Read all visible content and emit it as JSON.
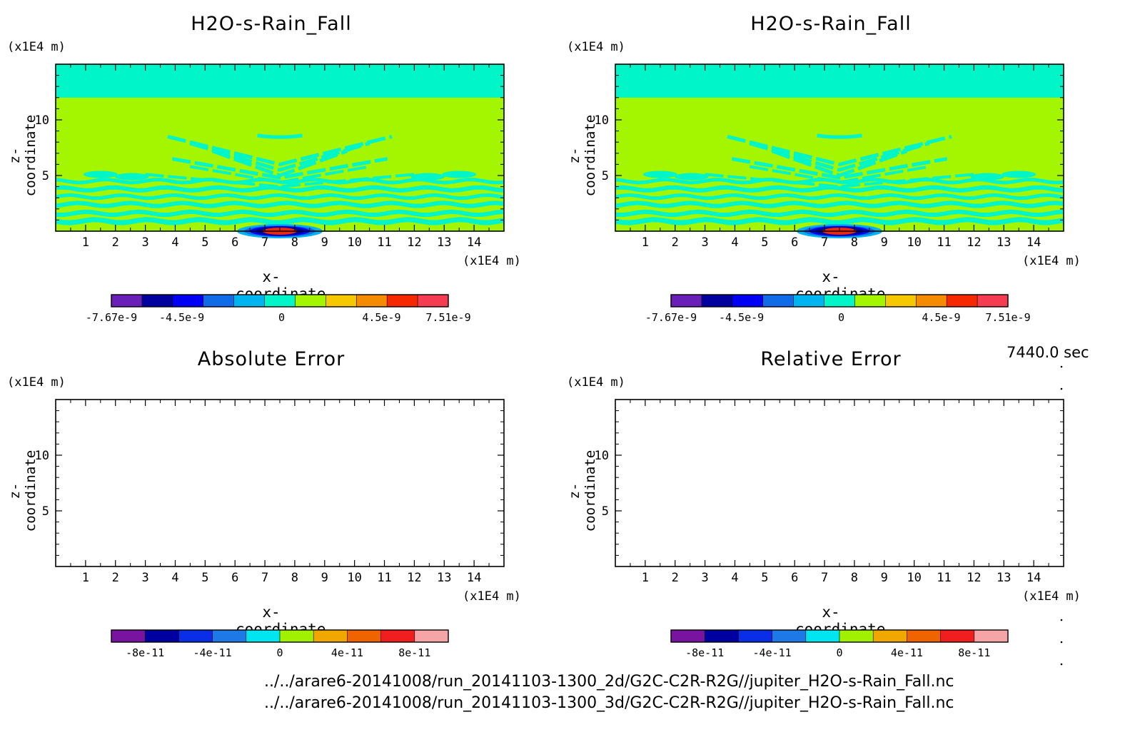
{
  "time_label": "7440.0 sec",
  "files": [
    "../../arare6-20141008/run_20141103-1300_2d/G2C-C2R-R2G//jupiter_H2O-s-Rain_Fall.nc",
    "../../arare6-20141008/run_20141103-1300_3d/G2C-C2R-R2G//jupiter_H2O-s-Rain_Fall.nc"
  ],
  "chart_data": [
    {
      "type": "heatmap",
      "title": "H2O-s-Rain_Fall",
      "xlabel": "x-coordinate",
      "ylabel": "z-coordinate",
      "x_unit": "(x1E4 m)",
      "y_unit": "(x1E4 m)",
      "xlim": [
        0,
        15
      ],
      "ylim": [
        0,
        15
      ],
      "xticks": [
        1,
        2,
        3,
        4,
        5,
        6,
        7,
        8,
        9,
        10,
        11,
        12,
        13,
        14
      ],
      "yticks": [
        5,
        10
      ],
      "colorbar": {
        "ticks": [
          "-7.67e-9",
          "-4.5e-9",
          "0",
          "4.5e-9",
          "7.51e-9"
        ],
        "tick_values": [
          -7.67e-09,
          -4.5e-09,
          0,
          4.5e-09,
          7.51e-09
        ],
        "min": -7.67e-09,
        "max": 7.51e-09,
        "colors": [
          "#6a1fb8",
          "#00009e",
          "#0000f5",
          "#0f6be8",
          "#00b4f0",
          "#00f5c8",
          "#a4f500",
          "#f5c800",
          "#f58c00",
          "#f52800",
          "#f53c50"
        ]
      }
    },
    {
      "type": "heatmap",
      "title": "H2O-s-Rain_Fall",
      "xlabel": "x-coordinate",
      "ylabel": "z-coordinate",
      "x_unit": "(x1E4 m)",
      "y_unit": "(x1E4 m)",
      "xlim": [
        0,
        15
      ],
      "ylim": [
        0,
        15
      ],
      "xticks": [
        1,
        2,
        3,
        4,
        5,
        6,
        7,
        8,
        9,
        10,
        11,
        12,
        13,
        14
      ],
      "yticks": [
        5,
        10
      ],
      "colorbar": {
        "ticks": [
          "-7.67e-9",
          "-4.5e-9",
          "0",
          "4.5e-9",
          "7.51e-9"
        ],
        "tick_values": [
          -7.67e-09,
          -4.5e-09,
          0,
          4.5e-09,
          7.51e-09
        ],
        "min": -7.67e-09,
        "max": 7.51e-09,
        "colors": [
          "#6a1fb8",
          "#00009e",
          "#0000f5",
          "#0f6be8",
          "#00b4f0",
          "#00f5c8",
          "#a4f500",
          "#f5c800",
          "#f58c00",
          "#f52800",
          "#f53c50"
        ]
      }
    },
    {
      "type": "heatmap",
      "title": "Absolute Error",
      "xlabel": "x-coordinate",
      "ylabel": "z-coordinate",
      "x_unit": "(x1E4 m)",
      "y_unit": "(x1E4 m)",
      "xlim": [
        0,
        15
      ],
      "ylim": [
        0,
        15
      ],
      "xticks": [
        1,
        2,
        3,
        4,
        5,
        6,
        7,
        8,
        9,
        10,
        11,
        12,
        13,
        14
      ],
      "yticks": [
        5,
        10
      ],
      "colorbar": {
        "ticks": [
          "-8e-11",
          "-4e-11",
          "0",
          "4e-11",
          "8e-11"
        ],
        "tick_values": [
          -8e-11,
          -4e-11,
          0,
          4e-11,
          8e-11
        ],
        "min": -1e-10,
        "max": 1e-10,
        "colors": [
          "#7814a0",
          "#0000a0",
          "#0a2ee6",
          "#1e78e6",
          "#00e6f0",
          "#a0f000",
          "#f0a800",
          "#f06400",
          "#f01e1e",
          "#f5a5a5"
        ]
      }
    },
    {
      "type": "heatmap",
      "title": "Relative Error",
      "xlabel": "x-coordinate",
      "ylabel": "z-coordinate",
      "x_unit": "(x1E4 m)",
      "y_unit": "(x1E4 m)",
      "xlim": [
        0,
        15
      ],
      "ylim": [
        0,
        15
      ],
      "xticks": [
        1,
        2,
        3,
        4,
        5,
        6,
        7,
        8,
        9,
        10,
        11,
        12,
        13,
        14
      ],
      "yticks": [
        5,
        10
      ],
      "colorbar": {
        "ticks": [
          "-8e-11",
          "-4e-11",
          "0",
          "4e-11",
          "8e-11"
        ],
        "tick_values": [
          -8e-11,
          -4e-11,
          0,
          4e-11,
          8e-11
        ],
        "min": -1e-10,
        "max": 1e-10,
        "colors": [
          "#7814a0",
          "#0000a0",
          "#0a2ee6",
          "#1e78e6",
          "#00e6f0",
          "#a0f000",
          "#f0a800",
          "#f06400",
          "#f01e1e",
          "#f5a5a5"
        ]
      }
    }
  ]
}
